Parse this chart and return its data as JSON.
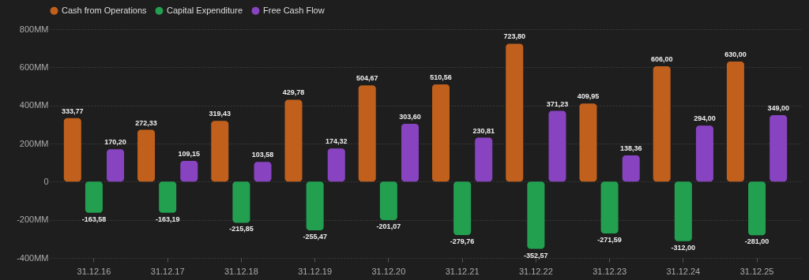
{
  "chart_data": {
    "type": "bar",
    "categories": [
      "31.12.16",
      "31.12.17",
      "31.12.18",
      "31.12.19",
      "31.12.20",
      "31.12.21",
      "31.12.22",
      "31.12.23",
      "31.12.24",
      "31.12.25"
    ],
    "series": [
      {
        "name": "Cash from Operations",
        "color": "#c0601c",
        "values": [
          333.77,
          272.33,
          319.43,
          429.78,
          504.67,
          510.56,
          723.8,
          409.95,
          606.0,
          630.0
        ],
        "value_labels": [
          "333,77",
          "272,33",
          "319,43",
          "429,78",
          "504,67",
          "510,56",
          "723,80",
          "409,95",
          "606,00",
          "630,00"
        ]
      },
      {
        "name": "Capital Expenditure",
        "color": "#22a050",
        "values": [
          -163.58,
          -163.19,
          -215.85,
          -255.47,
          -201.07,
          -279.76,
          -352.57,
          -271.59,
          -312.0,
          -281.0
        ],
        "value_labels": [
          "-163,58",
          "-163,19",
          "-215,85",
          "-255,47",
          "-201,07",
          "-279,76",
          "-352,57",
          "-271,59",
          "-312,00",
          "-281,00"
        ]
      },
      {
        "name": "Free Cash Flow",
        "color": "#8844c0",
        "values": [
          170.2,
          109.15,
          103.58,
          174.32,
          303.6,
          230.81,
          371.23,
          138.36,
          294.0,
          349.0
        ],
        "value_labels": [
          "170,20",
          "109,15",
          "103,58",
          "174,32",
          "303,60",
          "230,81",
          "371,23",
          "138,36",
          "294,00",
          "349,00"
        ]
      }
    ],
    "ylim": [
      -400,
      800
    ],
    "yticks": [
      {
        "value": -400,
        "label": "-400MM"
      },
      {
        "value": -200,
        "label": "-200MM"
      },
      0,
      {
        "value": 200,
        "label": "200MM"
      },
      {
        "value": 400,
        "label": "400MM"
      },
      {
        "value": 600,
        "label": "600MM"
      },
      {
        "value": 800,
        "label": "800MM"
      }
    ],
    "grid": "y",
    "legend": "top left"
  }
}
